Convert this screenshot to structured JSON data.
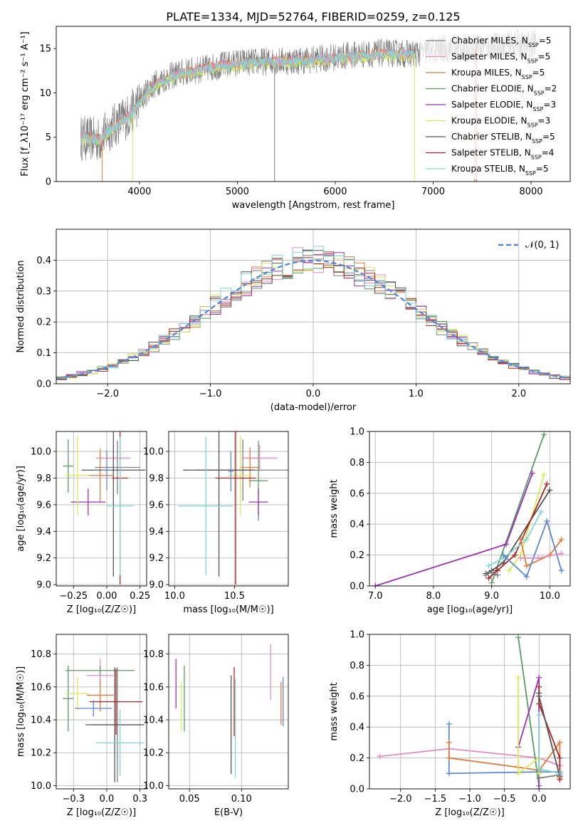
{
  "figure_title": "PLATE=1334, MJD=52764, FIBERID=0259, z=0.125",
  "models": [
    {
      "name": "Chabrier MILES",
      "color": "#808080"
    },
    {
      "name": "Salpeter MILES",
      "color": "#e78ac3"
    },
    {
      "name": "Kroupa MILES",
      "color": "#e07b39"
    },
    {
      "name": "Chabrier ELODIE",
      "color": "#5a9a68"
    },
    {
      "name": "Salpeter ELODIE",
      "color": "#9b30b5"
    },
    {
      "name": "Kroupa ELODIE",
      "color": "#d6ec5a"
    },
    {
      "name": "Chabrier STELIB",
      "color": "#555555"
    },
    {
      "name": "Salpeter STELIB",
      "color": "#b22222"
    },
    {
      "name": "Kroupa STELIB",
      "color": "#7fd6d6"
    },
    {
      "name": "",
      "color": "#5b87d6"
    }
  ],
  "chart_data": [
    {
      "type": "line",
      "title": "PLATE=1334, MJD=52764, FIBERID=0259, z=0.125",
      "xlabel": "wavelength [Angstrom, rest frame]",
      "ylabel": "Flux [f_λ10⁻¹⁷ erg cm⁻² s⁻¹ A⁻¹]",
      "xlim": [
        3150,
        8400
      ],
      "ylim": [
        0,
        17.5
      ],
      "xticks": [
        4000,
        5000,
        6000,
        7000,
        8000
      ],
      "yticks": [
        0,
        5,
        10,
        15
      ],
      "grid": false,
      "legend": "top-right",
      "legend_entries": [
        {
          "label": "Chabrier MILES, N",
          "sub": "SSP",
          "val": "=5",
          "color": "#808080"
        },
        {
          "label": "Salpeter MILES, N",
          "sub": "SSP",
          "val": "=5",
          "color": "#e78ac3"
        },
        {
          "label": "Kroupa MILES, N",
          "sub": "SSP",
          "val": "=5",
          "color": "#e07b39"
        },
        {
          "label": "Chabrier ELODIE, N",
          "sub": "SSP",
          "val": "=2",
          "color": "#5a9a68"
        },
        {
          "label": "Salpeter ELODIE, N",
          "sub": "SSP",
          "val": "=3",
          "color": "#9b30b5"
        },
        {
          "label": "Kroupa ELODIE, N",
          "sub": "SSP",
          "val": "=3",
          "color": "#d6ec5a"
        },
        {
          "label": "Chabrier STELIB, N",
          "sub": "SSP",
          "val": "=5",
          "color": "#555555"
        },
        {
          "label": "Salpeter STELIB, N",
          "sub": "SSP",
          "val": "=4",
          "color": "#b22222"
        },
        {
          "label": "Kroupa STELIB, N",
          "sub": "SSP",
          "val": "=5",
          "color": "#7fd6d6"
        }
      ],
      "observed_envelope": {
        "x": [
          3400,
          3600,
          3700,
          3800,
          3900,
          4000,
          4100,
          4200,
          4300,
          4400,
          4600,
          4800,
          5000,
          5200,
          5400,
          5600,
          5800,
          6000,
          6200,
          6500,
          6800,
          7000,
          7200,
          7500,
          7800,
          8050
        ],
        "y": [
          4.9,
          4.7,
          6.0,
          6.8,
          7.5,
          9.0,
          10.5,
          11.3,
          11.8,
          12.2,
          12.6,
          13.0,
          13.4,
          13.5,
          13.6,
          13.6,
          13.8,
          14.0,
          14.3,
          14.5,
          14.4,
          14.8,
          15.0,
          15.2,
          15.4,
          15.5
        ]
      },
      "model_envelope": {
        "x": [
          3400,
          3600,
          3700,
          3800,
          3900,
          4000,
          4100,
          4200,
          4300,
          4400,
          4600,
          4800,
          5000,
          5200,
          5400,
          5600,
          5800,
          6000,
          6200,
          6500,
          6800
        ],
        "y": [
          4.9,
          4.7,
          5.8,
          6.6,
          7.4,
          8.8,
          10.2,
          11.0,
          11.6,
          12.0,
          12.5,
          12.9,
          13.2,
          13.4,
          13.5,
          13.5,
          13.6,
          13.9,
          14.1,
          14.3,
          14.3
        ]
      }
    },
    {
      "type": "histogram",
      "xlabel": "(data-model)/error",
      "ylabel": "Normed distribution",
      "xlim": [
        -2.5,
        2.5
      ],
      "ylim": [
        0,
        0.5
      ],
      "xticks": [
        -2,
        -1,
        0,
        1,
        2
      ],
      "yticks": [
        0.0,
        0.1,
        0.2,
        0.3,
        0.4
      ],
      "grid": true,
      "legend": "top-right",
      "legend_label": "𝒩(0, 1)",
      "reference_curve": "normal(0,1)",
      "bin_width": 0.1
    },
    {
      "type": "scatter",
      "xlabel": "Z [log₁₀(Z/Z☉)]",
      "ylabel": "age  [log₁₀(age/yr)]",
      "xlim": [
        -0.38,
        0.3
      ],
      "ylim": [
        8.99,
        10.15
      ],
      "xticks": [
        -0.25,
        0.0,
        0.25
      ],
      "yticks": [
        9.0,
        9.2,
        9.4,
        9.6,
        9.8,
        10.0
      ],
      "grid": true,
      "points": [
        {
          "x": 0.08,
          "y": 9.88,
          "xerr": 0.17,
          "yerr": 0.2,
          "color": "#808080"
        },
        {
          "x": 0.05,
          "y": 9.95,
          "xerr": 0.13,
          "yerr": 0.1,
          "color": "#e78ac3"
        },
        {
          "x": -0.05,
          "y": 9.82,
          "xerr": 0.1,
          "yerr": 0.2,
          "color": "#e07b39"
        },
        {
          "x": -0.29,
          "y": 9.89,
          "xerr": 0.04,
          "yerr": 0.2,
          "color": "#5a9a68"
        },
        {
          "x": -0.14,
          "y": 9.62,
          "xerr": 0.13,
          "yerr": 0.1,
          "color": "#9b30b5"
        },
        {
          "x": -0.22,
          "y": 9.82,
          "xerr": 0.09,
          "yerr": 0.3,
          "color": "#d6ec5a"
        },
        {
          "x": 0.05,
          "y": 9.86,
          "xerr": 0.24,
          "yerr": 0.8,
          "color": "#555555"
        },
        {
          "x": 0.1,
          "y": 9.8,
          "xerr": 0.06,
          "yerr": 0.8,
          "color": "#b22222"
        },
        {
          "x": 0.1,
          "y": 9.59,
          "xerr": 0.1,
          "yerr": 0.52,
          "color": "#7fd6d6"
        },
        {
          "x": 0.0,
          "y": 9.86,
          "xerr": 0.04,
          "yerr": 0.15,
          "color": "#5b87d6"
        }
      ]
    },
    {
      "type": "scatter",
      "xlabel": "mass [log₁₀(M/M☉)]",
      "ylabel": "",
      "xlim": [
        9.95,
        10.95
      ],
      "ylim": [
        8.99,
        10.15
      ],
      "xticks": [
        10.0,
        10.5
      ],
      "yticks": [
        9.0,
        9.2,
        9.4,
        9.6,
        9.8,
        10.0
      ],
      "grid": true,
      "points": [
        {
          "x": 10.57,
          "y": 9.86,
          "xerr": 0.4,
          "yerr": 0.23,
          "color": "#808080"
        },
        {
          "x": 10.71,
          "y": 9.95,
          "xerr": 0.15,
          "yerr": 0.1,
          "color": "#e78ac3"
        },
        {
          "x": 10.63,
          "y": 9.88,
          "xerr": 0.08,
          "yerr": 0.15,
          "color": "#e07b39"
        },
        {
          "x": 10.7,
          "y": 9.78,
          "xerr": 0.08,
          "yerr": 0.3,
          "color": "#5a9a68"
        },
        {
          "x": 10.7,
          "y": 9.62,
          "xerr": 0.08,
          "yerr": 0.1,
          "color": "#9b30b5"
        },
        {
          "x": 10.55,
          "y": 9.82,
          "xerr": 0.1,
          "yerr": 0.3,
          "color": "#d6ec5a"
        },
        {
          "x": 10.37,
          "y": 9.86,
          "xerr": 0.3,
          "yerr": 0.8,
          "color": "#555555"
        },
        {
          "x": 10.51,
          "y": 9.8,
          "xerr": 0.17,
          "yerr": 0.8,
          "color": "#b22222"
        },
        {
          "x": 10.26,
          "y": 9.59,
          "xerr": 0.23,
          "yerr": 0.52,
          "color": "#7fd6d6"
        },
        {
          "x": 10.47,
          "y": 9.85,
          "xerr": 0.02,
          "yerr": 0.15,
          "color": "#5b87d6"
        }
      ]
    },
    {
      "type": "line",
      "xlabel": "age  [log₁₀(age/yr)]",
      "ylabel": "mass weight",
      "xlim": [
        6.9,
        10.35
      ],
      "ylim": [
        0.0,
        1.0
      ],
      "xticks": [
        7,
        8,
        9,
        10
      ],
      "yticks": [
        0.0,
        0.2,
        0.4,
        0.6,
        0.8,
        1.0
      ],
      "grid": true,
      "series": [
        {
          "color": "#5a9a68",
          "x": [
            9.0,
            9.9
          ],
          "y": [
            0.02,
            0.98
          ]
        },
        {
          "color": "#9b30b5",
          "x": [
            7.0,
            9.25,
            9.7
          ],
          "y": [
            0.0,
            0.27,
            0.73
          ]
        },
        {
          "color": "#d6ec5a",
          "x": [
            9.3,
            9.5,
            9.9
          ],
          "y": [
            0.1,
            0.2,
            0.72
          ]
        },
        {
          "color": "#555555",
          "x": [
            8.9,
            9.0,
            9.2,
            10.0
          ],
          "y": [
            0.08,
            0.1,
            0.15,
            0.62
          ]
        },
        {
          "color": "#b22222",
          "x": [
            8.95,
            9.1,
            9.4,
            9.95
          ],
          "y": [
            0.05,
            0.1,
            0.2,
            0.66
          ]
        },
        {
          "color": "#7fd6d6",
          "x": [
            8.95,
            9.2,
            9.6,
            9.85
          ],
          "y": [
            0.13,
            0.18,
            0.3,
            0.48
          ]
        },
        {
          "color": "#e07b39",
          "x": [
            9.5,
            9.6,
            10.0,
            10.2
          ],
          "y": [
            0.3,
            0.13,
            0.2,
            0.3
          ]
        },
        {
          "color": "#5b87d6",
          "x": [
            9.2,
            9.6,
            9.95,
            10.2
          ],
          "y": [
            0.2,
            0.06,
            0.42,
            0.1
          ]
        },
        {
          "color": "#e78ac3",
          "x": [
            9.5,
            9.8,
            10.2
          ],
          "y": [
            0.18,
            0.18,
            0.21
          ]
        },
        {
          "color": "#808080",
          "x": [
            8.9,
            9.0,
            9.1
          ],
          "y": [
            0.07,
            0.09,
            0.07
          ]
        }
      ]
    },
    {
      "type": "scatter",
      "xlabel": "Z [log₁₀(Z/Z☉)]",
      "ylabel": "mass [log₁₀(M/M☉)]",
      "xlim": [
        -0.38,
        0.3
      ],
      "ylim": [
        9.98,
        10.92
      ],
      "xticks": [
        -0.25,
        0.0,
        0.25
      ],
      "yticks": [
        10.0,
        10.2,
        10.4,
        10.6,
        10.8
      ],
      "grid": true,
      "points": [
        {
          "x": 0.08,
          "y": 10.37,
          "xerr": 0.2,
          "yerr": 0.35,
          "color": "#808080"
        },
        {
          "x": -0.05,
          "y": 10.67,
          "xerr": 0.1,
          "yerr": 0.1,
          "color": "#e78ac3"
        },
        {
          "x": -0.05,
          "y": 10.55,
          "xerr": 0.1,
          "yerr": 0.1,
          "color": "#e07b39"
        },
        {
          "x": -0.29,
          "y": 10.53,
          "xerr": 0.04,
          "yerr": 0.2,
          "color": "#5a9a68"
        },
        {
          "x": -0.05,
          "y": 10.7,
          "xerr": 0.26,
          "yerr": 0.03,
          "color": "#5a9a68"
        },
        {
          "x": -0.22,
          "y": 10.56,
          "xerr": 0.09,
          "yerr": 0.1,
          "color": "#d6ec5a"
        },
        {
          "x": 0.06,
          "y": 10.37,
          "xerr": 0.22,
          "yerr": 0.35,
          "color": "#555555"
        },
        {
          "x": 0.07,
          "y": 10.51,
          "xerr": 0.2,
          "yerr": 0.2,
          "color": "#b22222"
        },
        {
          "x": 0.1,
          "y": 10.26,
          "xerr": 0.18,
          "yerr": 0.2,
          "color": "#7fd6d6"
        },
        {
          "x": -0.1,
          "y": 10.47,
          "xerr": 0.14,
          "yerr": 0.05,
          "color": "#5b87d6"
        }
      ]
    },
    {
      "type": "scatter",
      "xlabel": "E(B-V)",
      "ylabel": "",
      "xlim": [
        0.03,
        0.145
      ],
      "ylim": [
        9.98,
        10.92
      ],
      "xticks": [
        0.05,
        0.1
      ],
      "yticks": [
        10.0,
        10.2,
        10.4,
        10.6,
        10.8
      ],
      "grid": true,
      "points": [
        {
          "x": 0.037,
          "y": 10.62,
          "yerr": 0.15,
          "color": "#9b30b5"
        },
        {
          "x": 0.042,
          "y": 10.48,
          "yerr": 0.15,
          "color": "#d6ec5a"
        },
        {
          "x": 0.045,
          "y": 10.53,
          "yerr": 0.2,
          "color": "#5a9a68"
        },
        {
          "x": 0.09,
          "y": 10.37,
          "yerr": 0.3,
          "color": "#555555"
        },
        {
          "x": 0.093,
          "y": 10.51,
          "yerr": 0.21,
          "color": "#b22222"
        },
        {
          "x": 0.094,
          "y": 10.35,
          "yerr": 0.3,
          "color": "#7fd6d6"
        },
        {
          "x": 0.128,
          "y": 10.69,
          "yerr": 0.17,
          "color": "#e78ac3"
        },
        {
          "x": 0.138,
          "y": 10.5,
          "yerr": 0.13,
          "color": "#e07b39"
        },
        {
          "x": 0.14,
          "y": 10.51,
          "yerr": 0.15,
          "color": "#5b87d6"
        }
      ]
    },
    {
      "type": "line",
      "xlabel": "Z [log₁₀(Z/Z☉)]",
      "ylabel": "mass weight",
      "xlim": [
        -2.45,
        0.45
      ],
      "ylim": [
        0.0,
        1.0
      ],
      "xticks": [
        -2.0,
        -1.5,
        -1.0,
        -0.5,
        0.0
      ],
      "yticks": [
        0.0,
        0.2,
        0.4,
        0.6,
        0.8,
        1.0
      ],
      "grid": true,
      "series": [
        {
          "color": "#e78ac3",
          "x": [
            -2.3,
            -1.3,
            0.0,
            0.3
          ],
          "y": [
            0.21,
            0.26,
            0.2,
            0.15
          ]
        },
        {
          "color": "#5b87d6",
          "x": [
            -1.3,
            -1.3,
            0.0,
            0.3,
            0.3
          ],
          "y": [
            0.42,
            0.1,
            0.11,
            0.11,
            0.1
          ]
        },
        {
          "color": "#e07b39",
          "x": [
            -1.3,
            -1.3,
            -0.3,
            0.0,
            0.3,
            0.3
          ],
          "y": [
            0.3,
            0.2,
            0.14,
            0.12,
            0.3,
            0.07
          ]
        },
        {
          "color": "#5a9a68",
          "x": [
            -0.3,
            0.0
          ],
          "y": [
            0.98,
            0.02
          ]
        },
        {
          "color": "#9b30b5",
          "x": [
            -0.3,
            0.0,
            0.0
          ],
          "y": [
            0.27,
            0.72,
            0.0
          ]
        },
        {
          "color": "#d6ec5a",
          "x": [
            -0.3,
            -0.3,
            0.0,
            0.0
          ],
          "y": [
            0.72,
            0.1,
            0.2,
            0.1
          ]
        },
        {
          "color": "#b22222",
          "x": [
            0.0,
            0.0,
            0.3,
            0.3
          ],
          "y": [
            0.66,
            0.55,
            0.2,
            0.06
          ]
        },
        {
          "color": "#555555",
          "x": [
            0.0,
            0.0,
            0.3
          ],
          "y": [
            0.62,
            0.6,
            0.08
          ]
        },
        {
          "color": "#7fd6d6",
          "x": [
            0.0,
            0.0,
            0.3
          ],
          "y": [
            0.48,
            0.13,
            0.1
          ]
        },
        {
          "color": "#808080",
          "x": [
            0.0,
            0.3
          ],
          "y": [
            0.07,
            0.09
          ]
        }
      ]
    }
  ]
}
